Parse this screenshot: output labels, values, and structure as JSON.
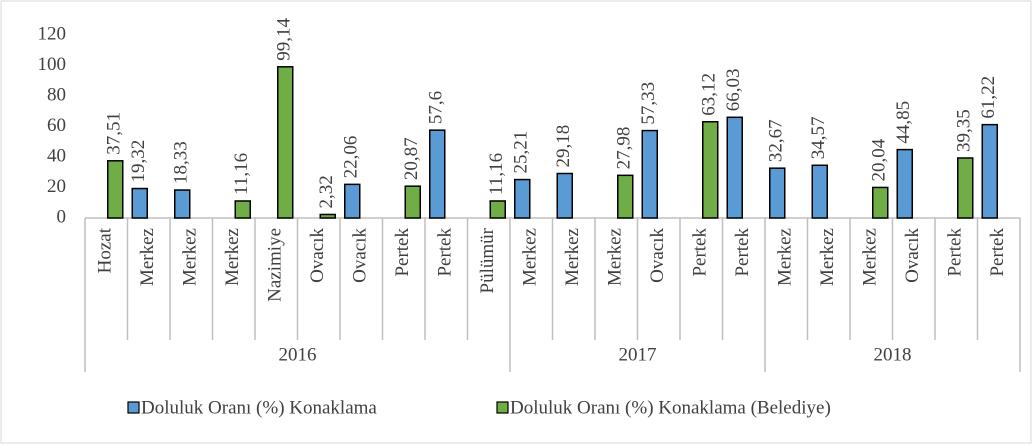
{
  "chart_data": {
    "type": "bar",
    "groups": [
      {
        "label": "2016",
        "categories": [
          "Hozat",
          "Merkez",
          "Merkez",
          "Merkez",
          "Nazimiye",
          "Ovacık",
          "Ovacık",
          "Pertek",
          "Pertek",
          "Pülümür"
        ]
      },
      {
        "label": "2017",
        "categories": [
          "Merkez",
          "Merkez",
          "Merkez",
          "Ovacık",
          "Pertek",
          "Pertek"
        ]
      },
      {
        "label": "2018",
        "categories": [
          "Merkez",
          "Merkez",
          "Merkez",
          "Ovacık",
          "Pertek",
          "Pertek"
        ]
      }
    ],
    "series": [
      {
        "name": "Doluluk Oranı (%) Konaklama",
        "color": "#5b9bd5",
        "values": [
          null,
          19.32,
          18.33,
          null,
          null,
          null,
          22.06,
          null,
          57.6,
          null,
          25.21,
          29.18,
          null,
          57.33,
          null,
          66.03,
          32.67,
          34.57,
          null,
          44.85,
          null,
          61.22
        ],
        "value_labels": [
          null,
          "19,32",
          "18,33",
          null,
          null,
          null,
          "22,06",
          null,
          "57,6",
          null,
          "25,21",
          "29,18",
          null,
          "57,33",
          null,
          "66,03",
          "32,67",
          "34,57",
          null,
          "44,85",
          null,
          "61,22"
        ]
      },
      {
        "name": "Doluluk Oranı (%) Konaklama (Belediye)",
        "color": "#70ad47",
        "values": [
          37.51,
          null,
          null,
          11.16,
          99.14,
          2.32,
          null,
          20.87,
          null,
          11.16,
          null,
          null,
          27.98,
          null,
          63.12,
          null,
          null,
          null,
          20.04,
          null,
          39.35,
          null
        ],
        "value_labels": [
          "37,51",
          null,
          null,
          "11,16",
          "99,14",
          "2,32",
          null,
          "20,87",
          null,
          "11,16",
          null,
          null,
          "27,98",
          null,
          "63,12",
          null,
          null,
          null,
          "20,04",
          null,
          "39,35",
          null
        ]
      }
    ],
    "ylim": [
      0,
      120
    ],
    "yticks": [
      0,
      20,
      40,
      60,
      80,
      100,
      120
    ],
    "legend": "bottom"
  }
}
